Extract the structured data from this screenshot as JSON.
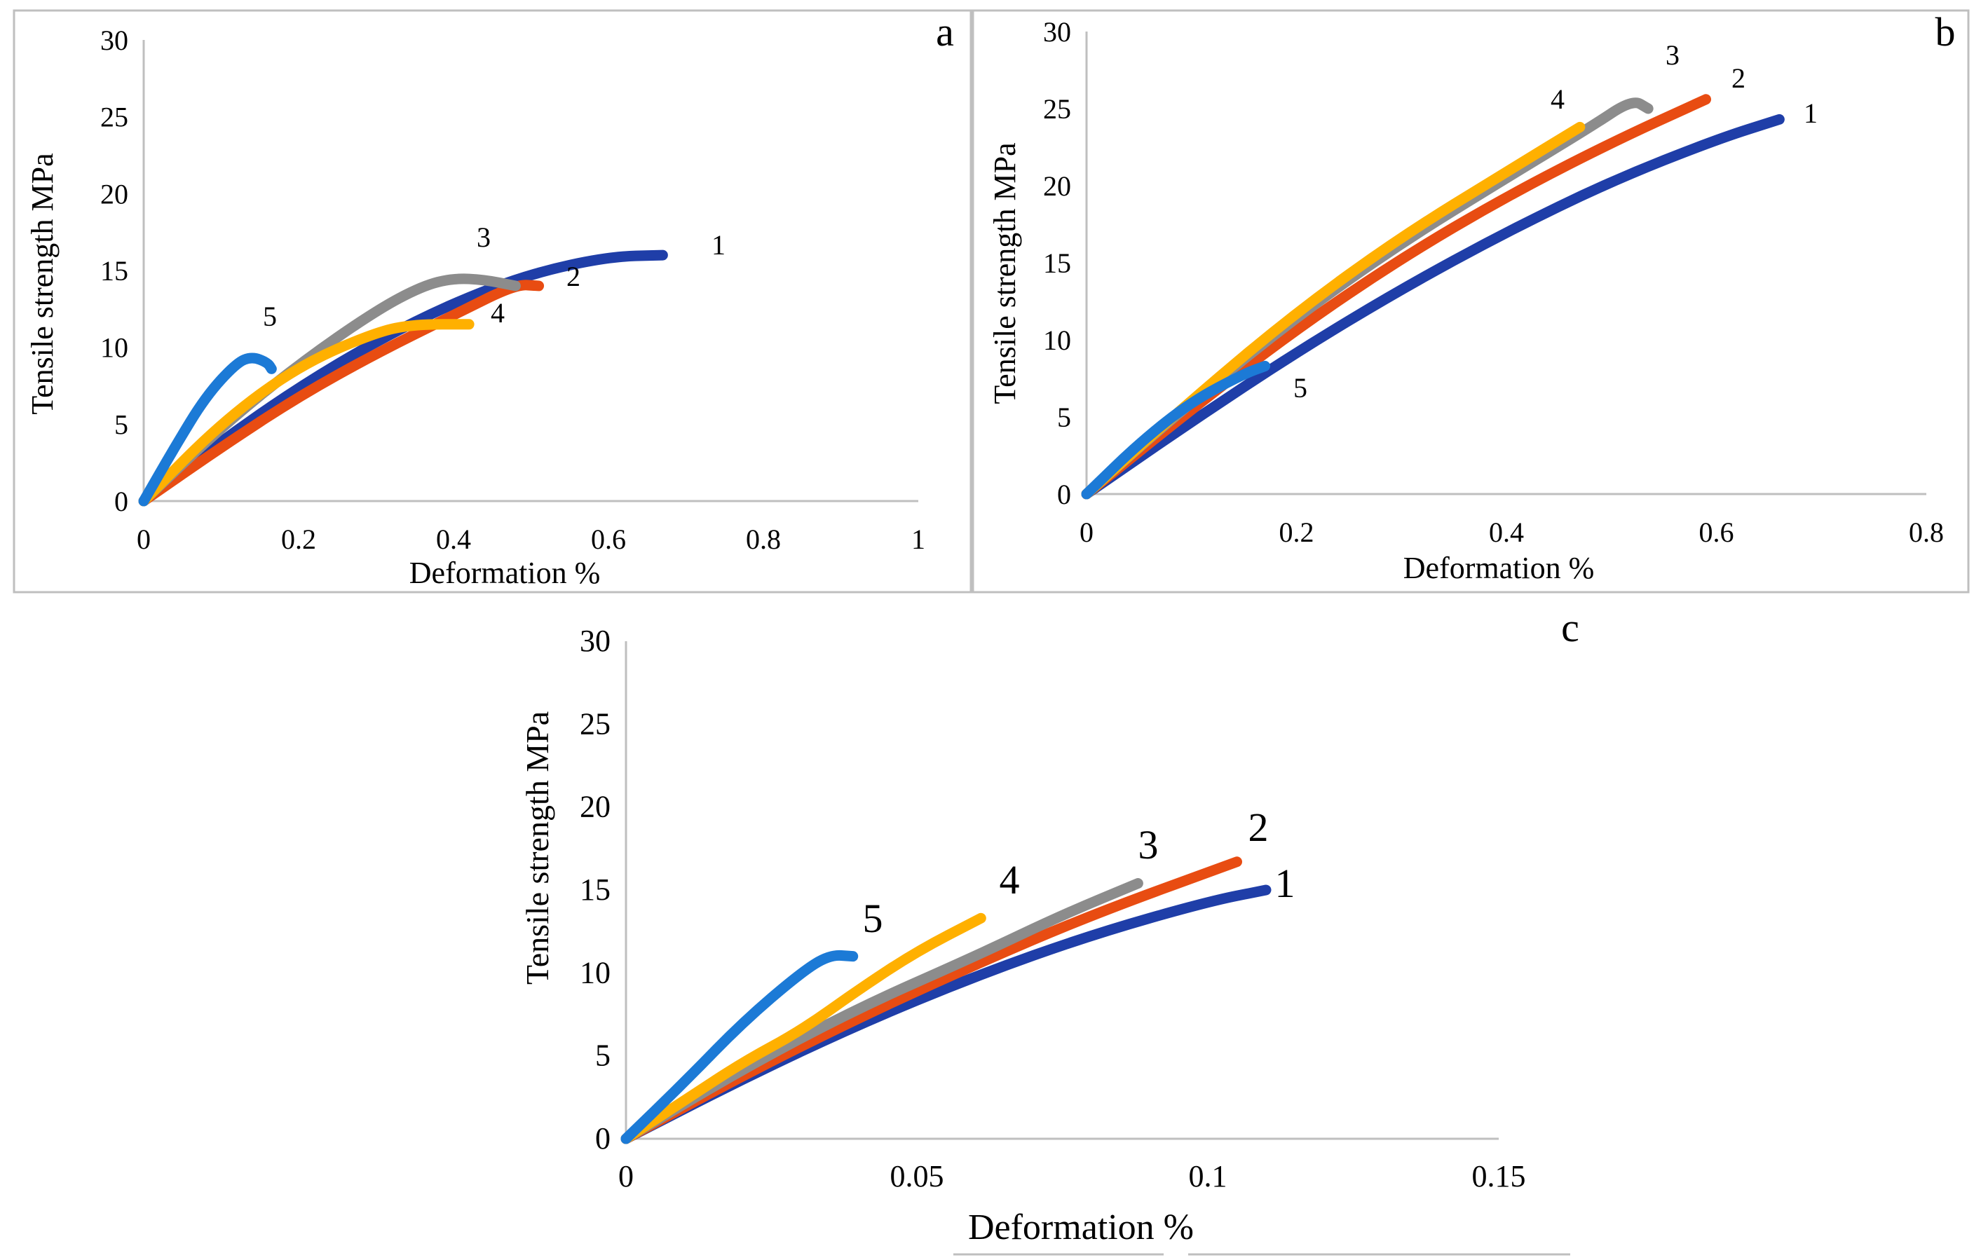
{
  "chart_data": [
    {
      "id": "a",
      "type": "line",
      "panel_label": "a",
      "xlabel": "Deformation %",
      "ylabel": "Tensile strength MPa",
      "xlim": [
        0,
        1
      ],
      "ylim": [
        0,
        30
      ],
      "x_ticks": [
        "0",
        "0.2",
        "0.4",
        "0.6",
        "0.8",
        "1"
      ],
      "x_tick_values": [
        0,
        0.2,
        0.4,
        0.6,
        0.8,
        1
      ],
      "y_ticks": [
        "0",
        "5",
        "10",
        "15",
        "20",
        "25",
        "30"
      ],
      "y_tick_values": [
        0,
        5,
        10,
        15,
        20,
        25,
        30
      ],
      "series": [
        {
          "name": "1",
          "label": "1",
          "color": "#1f3ea8",
          "x": [
            0,
            0.1,
            0.2,
            0.3,
            0.4,
            0.5,
            0.6,
            0.67
          ],
          "y": [
            0,
            3.9,
            7.4,
            10.4,
            12.9,
            14.8,
            15.9,
            16.0
          ]
        },
        {
          "name": "2",
          "label": "2",
          "color": "#e84c12",
          "x": [
            0,
            0.1,
            0.2,
            0.3,
            0.4,
            0.48,
            0.51
          ],
          "y": [
            0,
            3.5,
            6.8,
            9.6,
            12.1,
            14.1,
            14.0
          ]
        },
        {
          "name": "3",
          "label": "3",
          "color": "#8c8c8c",
          "x": [
            0,
            0.1,
            0.2,
            0.3,
            0.36,
            0.4,
            0.44,
            0.48
          ],
          "y": [
            0,
            4.8,
            8.9,
            12.4,
            14.0,
            14.5,
            14.4,
            14.0
          ]
        },
        {
          "name": "4",
          "label": "4",
          "color": "#ffb000",
          "x": [
            0,
            0.1,
            0.2,
            0.3,
            0.35,
            0.42
          ],
          "y": [
            0,
            5.1,
            8.8,
            11.0,
            11.5,
            11.5
          ]
        },
        {
          "name": "5",
          "label": "5",
          "color": "#1c7ad6",
          "x": [
            0,
            0.04,
            0.08,
            0.12,
            0.14,
            0.16,
            0.165
          ],
          "y": [
            0,
            3.5,
            6.8,
            9.0,
            9.4,
            9.0,
            8.6
          ]
        }
      ]
    },
    {
      "id": "b",
      "type": "line",
      "panel_label": "b",
      "xlabel": "Deformation %",
      "ylabel": "Tensile strength MPa",
      "xlim": [
        0,
        0.8
      ],
      "ylim": [
        0,
        30
      ],
      "x_ticks": [
        "0",
        "0.2",
        "0.4",
        "0.6",
        "0.8"
      ],
      "x_tick_values": [
        0,
        0.2,
        0.4,
        0.6,
        0.8
      ],
      "y_ticks": [
        "0",
        "5",
        "10",
        "15",
        "20",
        "25",
        "30"
      ],
      "y_tick_values": [
        0,
        5,
        10,
        15,
        20,
        25,
        30
      ],
      "series": [
        {
          "name": "1",
          "label": "1",
          "color": "#1f3ea8",
          "x": [
            0,
            0.1,
            0.2,
            0.3,
            0.4,
            0.5,
            0.6,
            0.66
          ],
          "y": [
            0,
            4.7,
            9.2,
            13.3,
            17.0,
            20.3,
            23.0,
            24.3
          ]
        },
        {
          "name": "2",
          "label": "2",
          "color": "#e84c12",
          "x": [
            0,
            0.1,
            0.2,
            0.3,
            0.4,
            0.5,
            0.59
          ],
          "y": [
            0,
            5.5,
            10.7,
            15.3,
            19.3,
            22.8,
            25.6
          ]
        },
        {
          "name": "3",
          "label": "3",
          "color": "#8c8c8c",
          "x": [
            0,
            0.1,
            0.2,
            0.3,
            0.4,
            0.48,
            0.52,
            0.535
          ],
          "y": [
            0,
            6.0,
            11.5,
            16.3,
            20.5,
            23.8,
            25.6,
            25.0
          ]
        },
        {
          "name": "4",
          "label": "4",
          "color": "#ffb000",
          "x": [
            0,
            0.1,
            0.2,
            0.3,
            0.4,
            0.47
          ],
          "y": [
            0,
            6.1,
            11.8,
            16.7,
            20.9,
            23.8
          ]
        },
        {
          "name": "5",
          "label": "5",
          "color": "#1c7ad6",
          "x": [
            0,
            0.05,
            0.1,
            0.15,
            0.17
          ],
          "y": [
            0,
            3.3,
            6.0,
            7.8,
            8.3
          ]
        }
      ]
    },
    {
      "id": "c",
      "type": "line",
      "panel_label": "c",
      "xlabel": "Deformation %",
      "ylabel": "Tensile strength MPa",
      "xlim": [
        0,
        0.15
      ],
      "ylim": [
        0,
        30
      ],
      "x_ticks": [
        "0",
        "0.05",
        "0.1",
        "0.15"
      ],
      "x_tick_values": [
        0,
        0.05,
        0.1,
        0.15
      ],
      "y_ticks": [
        "0",
        "5",
        "10",
        "15",
        "20",
        "25",
        "30"
      ],
      "y_tick_values": [
        0,
        5,
        10,
        15,
        20,
        25,
        30
      ],
      "series": [
        {
          "name": "1",
          "label": "1",
          "color": "#1f3ea8",
          "x": [
            0,
            0.02,
            0.04,
            0.06,
            0.08,
            0.1,
            0.11
          ],
          "y": [
            0,
            3.6,
            6.9,
            9.8,
            12.3,
            14.3,
            15.0
          ]
        },
        {
          "name": "2",
          "label": "2",
          "color": "#e84c12",
          "x": [
            0,
            0.02,
            0.04,
            0.06,
            0.08,
            0.105
          ],
          "y": [
            0,
            3.8,
            7.3,
            10.5,
            13.5,
            16.7
          ]
        },
        {
          "name": "3",
          "label": "3",
          "color": "#8c8c8c",
          "x": [
            0,
            0.02,
            0.04,
            0.06,
            0.075,
            0.088
          ],
          "y": [
            0,
            4.2,
            7.9,
            11.0,
            13.5,
            15.4
          ]
        },
        {
          "name": "4",
          "label": "4",
          "color": "#ffb000",
          "x": [
            0,
            0.01,
            0.02,
            0.03,
            0.04,
            0.05,
            0.061
          ],
          "y": [
            0,
            2.3,
            4.6,
            6.5,
            9.0,
            11.3,
            13.3
          ]
        },
        {
          "name": "5",
          "label": "5",
          "color": "#1c7ad6",
          "x": [
            0,
            0.01,
            0.02,
            0.03,
            0.035,
            0.039
          ],
          "y": [
            0,
            3.4,
            7.0,
            10.0,
            11.1,
            11.0
          ]
        }
      ]
    }
  ]
}
